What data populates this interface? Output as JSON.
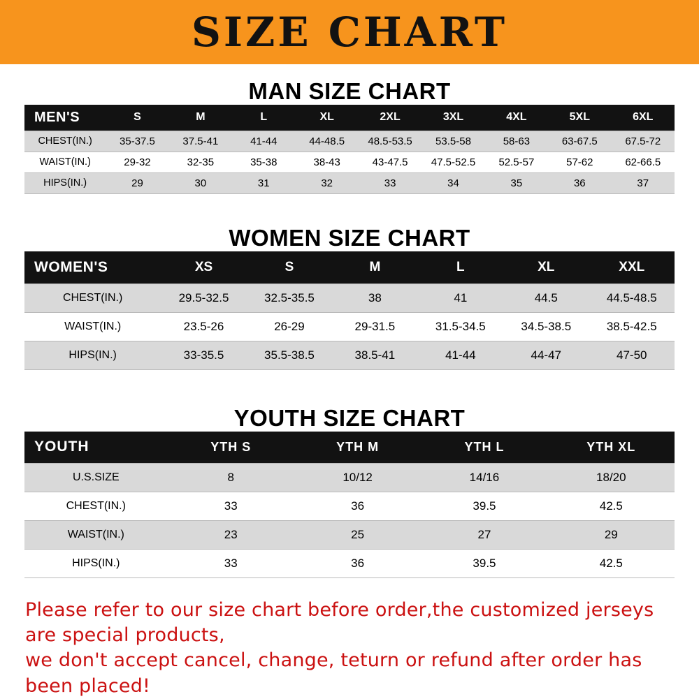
{
  "colors": {
    "banner_bg": "#F7941D",
    "table_header_bg": "#121212",
    "row_stripe": "#D9D9D9",
    "footer_text": "#CB1111"
  },
  "banner": {
    "title": "SIZE CHART"
  },
  "sections": [
    {
      "heading": "MAN SIZE CHART",
      "table": {
        "header": [
          "MEN'S",
          "S",
          "M",
          "L",
          "XL",
          "2XL",
          "3XL",
          "4XL",
          "5XL",
          "6XL"
        ],
        "rows": [
          [
            "CHEST(IN.)",
            "35-37.5",
            "37.5-41",
            "41-44",
            "44-48.5",
            "48.5-53.5",
            "53.5-58",
            "58-63",
            "63-67.5",
            "67.5-72"
          ],
          [
            "WAIST(IN.)",
            "29-32",
            "32-35",
            "35-38",
            "38-43",
            "43-47.5",
            "47.5-52.5",
            "52.5-57",
            "57-62",
            "62-66.5"
          ],
          [
            "HIPS(IN.)",
            "29",
            "30",
            "31",
            "32",
            "33",
            "34",
            "35",
            "36",
            "37"
          ]
        ]
      }
    },
    {
      "heading": "WOMEN SIZE CHART",
      "table": {
        "header": [
          "WOMEN'S",
          "XS",
          "S",
          "M",
          "L",
          "XL",
          "XXL"
        ],
        "rows": [
          [
            "CHEST(IN.)",
            "29.5-32.5",
            "32.5-35.5",
            "38",
            "41",
            "44.5",
            "44.5-48.5"
          ],
          [
            "WAIST(IN.)",
            "23.5-26",
            "26-29",
            "29-31.5",
            "31.5-34.5",
            "34.5-38.5",
            "38.5-42.5"
          ],
          [
            "HIPS(IN.)",
            "33-35.5",
            "35.5-38.5",
            "38.5-41",
            "41-44",
            "44-47",
            "47-50"
          ]
        ]
      }
    },
    {
      "heading": "YOUTH SIZE CHART",
      "table": {
        "header": [
          "YOUTH",
          "YTH S",
          "YTH M",
          "YTH L",
          "YTH XL"
        ],
        "rows": [
          [
            "U.S.SIZE",
            "8",
            "10/12",
            "14/16",
            "18/20"
          ],
          [
            "CHEST(IN.)",
            "33",
            "36",
            "39.5",
            "42.5"
          ],
          [
            "WAIST(IN.)",
            "23",
            "25",
            "27",
            "29"
          ],
          [
            "HIPS(IN.)",
            "33",
            "36",
            "39.5",
            "42.5"
          ]
        ]
      }
    }
  ],
  "footer": {
    "lines": [
      "Please refer to our size chart before order,the customized jerseys are special products,",
      "we don't accept cancel, change, teturn or refund after order has been placed!"
    ]
  }
}
